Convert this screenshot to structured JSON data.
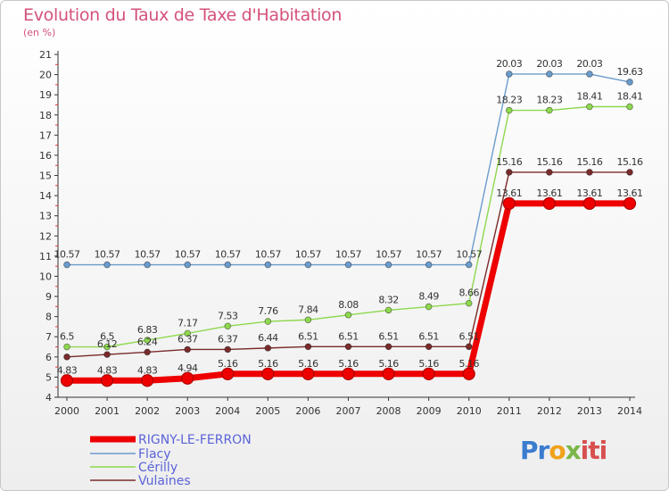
{
  "chart_data": {
    "type": "line",
    "title": "Evolution du Taux de Taxe d'Habitation",
    "unit": "(en %)",
    "x": [
      "2000",
      "2001",
      "2002",
      "2003",
      "2004",
      "2005",
      "2006",
      "2007",
      "2008",
      "2009",
      "2010",
      "2011",
      "2012",
      "2013",
      "2014"
    ],
    "ylim": [
      4,
      21
    ],
    "yticks": [
      "4",
      "5",
      "6",
      "7",
      "8",
      "9",
      "10",
      "11",
      "12",
      "13",
      "14",
      "15",
      "16",
      "17",
      "18",
      "19",
      "20",
      "21"
    ],
    "grid": false,
    "legend": "bottom-left",
    "series": [
      {
        "name": "RIGNY-LE-FERRON",
        "color": "#ee0000",
        "values": [
          4.83,
          4.83,
          4.83,
          4.94,
          5.16,
          5.16,
          5.16,
          5.16,
          5.16,
          5.16,
          5.16,
          13.61,
          13.61,
          13.61,
          13.61
        ],
        "labels": [
          "4.83",
          "4.83",
          "4.83",
          "4.94",
          "5.16",
          "5.16",
          "5.16",
          "5.16",
          "5.16",
          "5.16",
          "5.16",
          "13.61",
          "13.61",
          "13.61",
          "13.61"
        ]
      },
      {
        "name": "Flacy",
        "color": "#6a9ccc",
        "values": [
          10.57,
          10.57,
          10.57,
          10.57,
          10.57,
          10.57,
          10.57,
          10.57,
          10.57,
          10.57,
          10.57,
          20.03,
          20.03,
          20.03,
          19.63
        ],
        "labels": [
          "10.57",
          "10.57",
          "10.57",
          "10.57",
          "10.57",
          "10.57",
          "10.57",
          "10.57",
          "10.57",
          "10.57",
          "10.57",
          "20.03",
          "20.03",
          "20.03",
          "19.63"
        ]
      },
      {
        "name": "Cérilly",
        "color": "#8ed84e",
        "values": [
          6.5,
          6.5,
          6.83,
          7.17,
          7.53,
          7.76,
          7.84,
          8.08,
          8.32,
          8.49,
          8.66,
          18.23,
          18.23,
          18.41,
          18.41
        ],
        "labels": [
          "6.5",
          "6.5",
          "6.83",
          "7.17",
          "7.53",
          "7.76",
          "7.84",
          "8.08",
          "8.32",
          "8.49",
          "8.66",
          "18.23",
          "18.23",
          "18.41",
          "18.41"
        ]
      },
      {
        "name": "Vulaines",
        "color": "#7a2b2b",
        "values": [
          6.0,
          6.12,
          6.24,
          6.37,
          6.37,
          6.44,
          6.51,
          6.51,
          6.51,
          6.51,
          6.51,
          15.16,
          15.16,
          15.16,
          15.16
        ],
        "labels": [
          "",
          "6.12",
          "6.24",
          "6.37",
          "6.37",
          "6.44",
          "6.51",
          "6.51",
          "6.51",
          "6.51",
          "6.51",
          "15.16",
          "15.16",
          "15.16",
          "15.16"
        ]
      }
    ]
  },
  "branding": {
    "logo_parts": [
      "Pr",
      "o",
      "x",
      "iti"
    ]
  }
}
